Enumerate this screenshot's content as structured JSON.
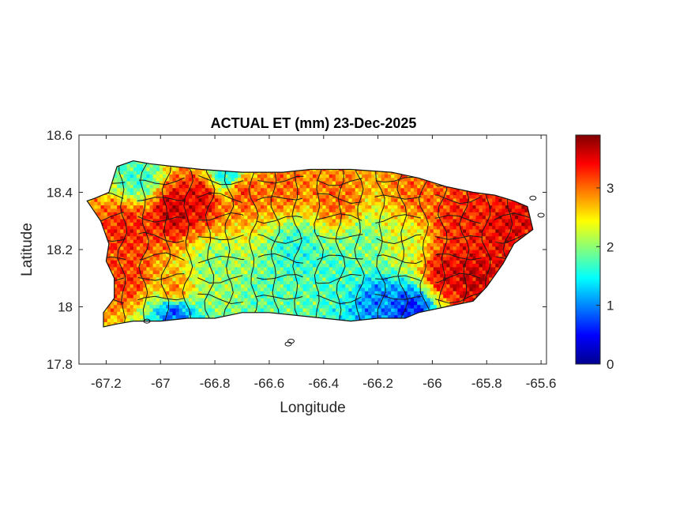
{
  "chart_data": {
    "type": "heatmap",
    "title": "ACTUAL ET (mm) 23-Dec-2025",
    "xlabel": "Longitude",
    "ylabel": "Latitude",
    "xlim": [
      -67.3,
      -65.58
    ],
    "ylim": [
      17.8,
      18.6
    ],
    "xticks": [
      -67.2,
      -67,
      -66.8,
      -66.6,
      -66.4,
      -66.2,
      -66,
      -65.8,
      -65.6
    ],
    "xtick_labels": [
      "-67.2",
      "-67",
      "-66.8",
      "-66.6",
      "-66.4",
      "-66.2",
      "-66",
      "-65.8",
      "-65.6"
    ],
    "yticks": [
      17.8,
      18,
      18.2,
      18.4,
      18.6
    ],
    "ytick_labels": [
      "17.8",
      "18",
      "18.2",
      "18.4",
      "18.6"
    ],
    "colorbar": {
      "colormap": "jet",
      "limits": [
        0,
        3.9
      ],
      "ticks": [
        0,
        1,
        2,
        3
      ],
      "tick_labels": [
        "0",
        "1",
        "2",
        "3"
      ]
    },
    "outline": [
      [
        -67.27,
        18.37
      ],
      [
        -67.24,
        18.38
      ],
      [
        -67.19,
        18.4
      ],
      [
        -67.17,
        18.46
      ],
      [
        -67.16,
        18.49
      ],
      [
        -67.1,
        18.51
      ],
      [
        -67.04,
        18.5
      ],
      [
        -66.95,
        18.49
      ],
      [
        -66.85,
        18.48
      ],
      [
        -66.7,
        18.47
      ],
      [
        -66.55,
        18.47
      ],
      [
        -66.45,
        18.48
      ],
      [
        -66.3,
        18.48
      ],
      [
        -66.15,
        18.47
      ],
      [
        -66.05,
        18.45
      ],
      [
        -65.95,
        18.42
      ],
      [
        -65.85,
        18.4
      ],
      [
        -65.77,
        18.39
      ],
      [
        -65.7,
        18.37
      ],
      [
        -65.65,
        18.35
      ],
      [
        -65.63,
        18.27
      ],
      [
        -65.7,
        18.22
      ],
      [
        -65.74,
        18.15
      ],
      [
        -65.8,
        18.07
      ],
      [
        -65.85,
        18.02
      ],
      [
        -65.95,
        18.0
      ],
      [
        -66.05,
        17.98
      ],
      [
        -66.1,
        17.96
      ],
      [
        -66.2,
        17.96
      ],
      [
        -66.3,
        17.95
      ],
      [
        -66.4,
        17.96
      ],
      [
        -66.5,
        17.97
      ],
      [
        -66.6,
        17.98
      ],
      [
        -66.7,
        17.98
      ],
      [
        -66.8,
        17.96
      ],
      [
        -66.9,
        17.96
      ],
      [
        -67.0,
        17.95
      ],
      [
        -67.1,
        17.95
      ],
      [
        -67.16,
        17.94
      ],
      [
        -67.21,
        17.93
      ],
      [
        -67.21,
        17.98
      ],
      [
        -67.17,
        18.03
      ],
      [
        -67.17,
        18.1
      ],
      [
        -67.2,
        18.16
      ],
      [
        -67.19,
        18.22
      ],
      [
        -67.22,
        18.3
      ]
    ],
    "field_hotspots": [
      {
        "lon": -66.95,
        "lat": 18.34,
        "value": 3.6
      },
      {
        "lon": -66.85,
        "lat": 18.38,
        "value": 3.5
      },
      {
        "lon": -66.7,
        "lat": 18.41,
        "value": 3.2
      },
      {
        "lon": -66.55,
        "lat": 18.42,
        "value": 3.0
      },
      {
        "lon": -66.35,
        "lat": 18.37,
        "value": 3.0
      },
      {
        "lon": -67.12,
        "lat": 18.28,
        "value": 3.3
      },
      {
        "lon": -67.12,
        "lat": 18.1,
        "value": 3.2
      },
      {
        "lon": -66.95,
        "lat": 18.05,
        "value": 3.0
      },
      {
        "lon": -65.95,
        "lat": 18.12,
        "value": 3.5
      },
      {
        "lon": -65.85,
        "lat": 18.1,
        "value": 3.6
      },
      {
        "lon": -65.9,
        "lat": 18.3,
        "value": 3.3
      },
      {
        "lon": -65.72,
        "lat": 18.3,
        "value": 3.5
      },
      {
        "lon": -66.05,
        "lat": 18.4,
        "value": 3.0
      },
      {
        "lon": -65.8,
        "lat": 18.38,
        "value": 3.3
      },
      {
        "lon": -66.5,
        "lat": 18.2,
        "value": 1.6
      },
      {
        "lon": -66.35,
        "lat": 18.12,
        "value": 1.7
      },
      {
        "lon": -66.6,
        "lat": 18.05,
        "value": 1.8
      },
      {
        "lon": -66.8,
        "lat": 18.15,
        "value": 2.0
      },
      {
        "lon": -66.25,
        "lat": 18.22,
        "value": 1.9
      },
      {
        "lon": -66.1,
        "lat": 18.22,
        "value": 2.3
      },
      {
        "lon": -67.08,
        "lat": 18.45,
        "value": 1.7
      },
      {
        "lon": -66.95,
        "lat": 17.99,
        "value": 0.7
      },
      {
        "lon": -66.2,
        "lat": 18.02,
        "value": 1.0
      },
      {
        "lon": -66.08,
        "lat": 17.99,
        "value": 0.6
      },
      {
        "lon": -66.75,
        "lat": 18.46,
        "value": 1.4
      }
    ]
  }
}
